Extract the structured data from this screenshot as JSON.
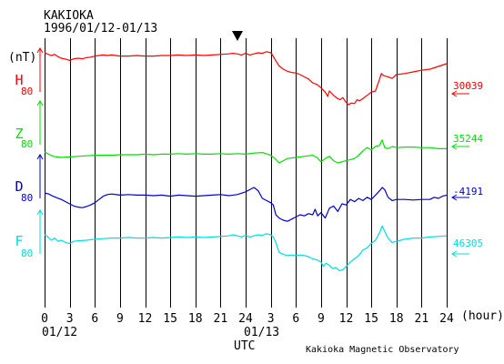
{
  "header": {
    "station": "KAKIOKA",
    "period": "1996/01/12-01/13"
  },
  "unit_label": "(nT)",
  "x_axis_unit": "(hour)",
  "x_axis_title": "UTC",
  "date_labels": [
    "01/12",
    "01/13"
  ],
  "footer": "Kakioka Magnetic Observatory",
  "chart_data": {
    "type": "line",
    "title": "KAKIOKA 1996/01/12-01/13",
    "xlabel": "UTC",
    "x_ticks": [
      "0",
      "3",
      "6",
      "9",
      "12",
      "15",
      "18",
      "21",
      "24",
      "3",
      "6",
      "9",
      "12",
      "15",
      "18",
      "21",
      "24"
    ],
    "x_range": [
      0,
      48
    ],
    "scale_nT": 80,
    "series": [
      {
        "name": "H",
        "color": "#ff0000",
        "baseline": "30039",
        "scale_label": "80",
        "x": [
          0,
          0.3,
          0.8,
          1.2,
          1.6,
          2,
          2.6,
          3,
          3.5,
          4,
          4.5,
          5,
          5.5,
          6,
          6.5,
          7,
          7.5,
          8,
          8.5,
          9,
          10,
          11,
          12,
          13,
          14,
          15,
          16,
          17,
          18,
          19,
          20,
          21,
          22,
          22.5,
          23,
          23.5,
          24,
          24.5,
          25,
          25.5,
          26,
          26.5,
          27,
          27.2,
          27.5,
          28,
          28.5,
          29,
          29.5,
          30,
          30.5,
          31,
          31.5,
          32,
          32.5,
          33,
          33.5,
          33.8,
          34,
          34.5,
          35,
          35.3,
          35.6,
          36,
          36.3,
          36.6,
          37,
          37.3,
          37.6,
          38,
          38.5,
          39,
          39.5,
          40,
          40.2,
          40.5,
          41,
          41.5,
          42,
          43,
          44,
          45,
          46,
          47,
          48
        ],
        "y": [
          0,
          -2,
          -5,
          -3,
          -7,
          -10,
          -12,
          -14,
          -11,
          -10,
          -11,
          -9,
          -8,
          -6,
          -5,
          -4,
          -5,
          -4,
          -5,
          -6,
          -6,
          -5,
          -6,
          -6,
          -5,
          -5,
          -4,
          -5,
          -4,
          -5,
          -4,
          -3,
          -2,
          -1,
          -2,
          -4,
          -1,
          -4,
          -2,
          0,
          -1,
          2,
          0,
          -4,
          -12,
          -24,
          -30,
          -34,
          -36,
          -37,
          -40,
          -44,
          -48,
          -55,
          -58,
          -64,
          -72,
          -80,
          -70,
          -78,
          -84,
          -86,
          -82,
          -91,
          -95,
          -92,
          -93,
          -86,
          -88,
          -84,
          -78,
          -72,
          -70,
          -48,
          -38,
          -42,
          -44,
          -47,
          -40,
          -38,
          -35,
          -32,
          -30,
          -25,
          -20
        ]
      },
      {
        "name": "Z",
        "color": "#00e000",
        "baseline": "35244",
        "scale_label": "80",
        "x": [
          0,
          0.5,
          1,
          2,
          3,
          4,
          5,
          6,
          7,
          8,
          9,
          10,
          11,
          12,
          13,
          14,
          15,
          16,
          17,
          18,
          19,
          20,
          21,
          22,
          23,
          24,
          25,
          26,
          27,
          27.5,
          28,
          28.5,
          29,
          30,
          31,
          32,
          32.5,
          33,
          33.5,
          34,
          34.5,
          35,
          35.5,
          36,
          36.5,
          37,
          37.5,
          38,
          38.5,
          39,
          39.5,
          40,
          40.3,
          40.6,
          41,
          41.5,
          42,
          43,
          44,
          45,
          46,
          47,
          48
        ],
        "y": [
          0,
          -4,
          -8,
          -10,
          -9,
          -8,
          -7,
          -6,
          -6,
          -6,
          -5,
          -5,
          -5,
          -4,
          -5,
          -4,
          -4,
          -3,
          -4,
          -3,
          -4,
          -4,
          -3,
          -4,
          -3,
          -4,
          -2,
          -1,
          -6,
          -12,
          -20,
          -16,
          -12,
          -10,
          -8,
          -6,
          -10,
          -18,
          -12,
          -8,
          -16,
          -20,
          -18,
          -16,
          -14,
          -12,
          -6,
          2,
          8,
          4,
          10,
          12,
          22,
          8,
          6,
          10,
          8,
          9,
          9,
          8,
          8,
          6,
          6
        ]
      },
      {
        "name": "D",
        "color": "#0000cc",
        "baseline": "-4191",
        "scale_label": "80",
        "x": [
          0,
          0.5,
          1,
          1.5,
          2,
          2.5,
          3,
          3.5,
          4,
          4.5,
          5,
          5.5,
          6,
          6.5,
          7,
          7.5,
          8,
          9,
          10,
          11,
          12,
          13,
          14,
          15,
          16,
          17,
          18,
          19,
          20,
          21,
          22,
          23,
          24,
          24.5,
          25,
          25.5,
          26,
          26.5,
          27,
          27.3,
          27.6,
          28,
          28.5,
          29,
          29.5,
          30,
          30.5,
          31,
          31.5,
          32,
          32.3,
          32.6,
          33,
          33.5,
          34,
          34.5,
          35,
          35.5,
          36,
          36.5,
          37,
          37.5,
          38,
          38.5,
          39,
          39.5,
          40,
          40.3,
          40.6,
          41,
          41.5,
          42,
          43,
          44,
          45,
          46,
          46.5,
          47,
          47.5,
          48
        ],
        "y": [
          0,
          -2,
          -6,
          -9,
          -12,
          -16,
          -20,
          -24,
          -26,
          -27,
          -25,
          -22,
          -18,
          -12,
          -6,
          -3,
          -2,
          -4,
          -3,
          -4,
          -4,
          -5,
          -4,
          -6,
          -4,
          -5,
          -6,
          -5,
          -4,
          -3,
          -5,
          -3,
          2,
          6,
          10,
          4,
          -10,
          -14,
          -18,
          -22,
          -40,
          -46,
          -50,
          -52,
          -48,
          -44,
          -40,
          -42,
          -38,
          -40,
          -30,
          -42,
          -36,
          -46,
          -28,
          -24,
          -34,
          -20,
          -22,
          -12,
          -16,
          -10,
          -14,
          -8,
          -12,
          -4,
          4,
          10,
          6,
          -8,
          -14,
          -12,
          -12,
          -13,
          -12,
          -12,
          -8,
          -10,
          -6,
          -4
        ]
      },
      {
        "name": "F",
        "color": "#00dddd",
        "baseline": "46305",
        "scale_label": "80",
        "x": [
          0,
          0.4,
          0.8,
          1.2,
          1.6,
          2,
          2.5,
          3,
          3.5,
          4,
          5,
          6,
          7,
          8,
          9,
          10,
          11,
          12,
          13,
          14,
          15,
          16,
          17,
          18,
          19,
          20,
          21,
          22,
          22.5,
          23,
          23.5,
          24,
          24.5,
          25,
          25.5,
          26,
          26.5,
          27,
          27.3,
          27.6,
          28,
          28.5,
          29,
          29.5,
          30,
          30.5,
          31,
          31.5,
          32,
          32.5,
          33,
          33.3,
          33.6,
          34,
          34.4,
          34.8,
          35.2,
          35.6,
          36,
          36.5,
          37,
          37.5,
          38,
          38.5,
          39,
          39.5,
          40,
          40.3,
          40.6,
          41,
          41.5,
          42,
          42.5,
          43,
          44,
          45,
          46,
          47,
          48
        ],
        "y": [
          0,
          -4,
          -10,
          -6,
          -12,
          -10,
          -14,
          -16,
          -12,
          -11,
          -10,
          -8,
          -7,
          -6,
          -6,
          -5,
          -6,
          -6,
          -5,
          -6,
          -5,
          -4,
          -5,
          -4,
          -5,
          -4,
          -3,
          -2,
          0,
          -2,
          -4,
          -1,
          -4,
          -2,
          0,
          -1,
          2,
          0,
          -4,
          -14,
          -32,
          -36,
          -38,
          -37,
          -38,
          -37,
          -38,
          -40,
          -44,
          -46,
          -50,
          -58,
          -52,
          -56,
          -62,
          -60,
          -66,
          -64,
          -58,
          -50,
          -44,
          -38,
          -28,
          -24,
          -16,
          -10,
          4,
          16,
          6,
          -6,
          -14,
          -12,
          -10,
          -8,
          -6,
          -6,
          -4,
          -3,
          -2
        ]
      }
    ]
  }
}
